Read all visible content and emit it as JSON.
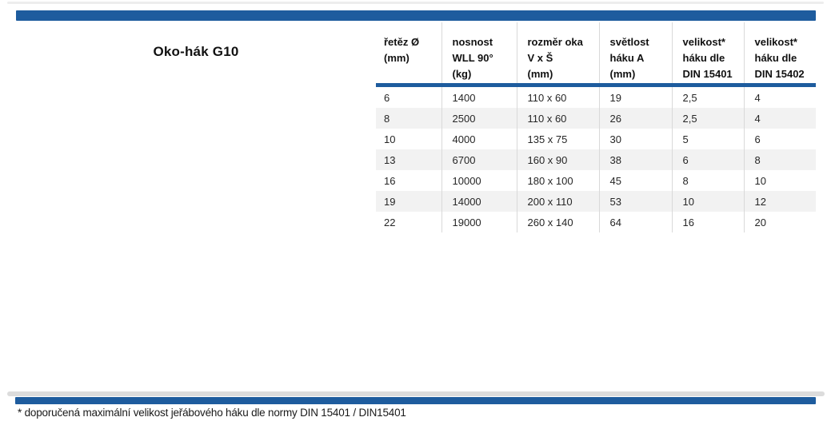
{
  "page": {
    "title": "Oko-hák G10",
    "footnote": "* doporučená maximální velikost jeřábového háku dle normy DIN 15401 / DIN15401"
  },
  "colors": {
    "accent_blue": "#1e5c9e",
    "row_alt": "#f2f2f2",
    "grid_line": "#d9d9d9"
  },
  "table": {
    "columns": [
      "řetěz Ø\n(mm)",
      "nosnost\nWLL 90°\n(kg)",
      "rozměr oka\nV x Š\n(mm)",
      "světlost\nháku A\n(mm)",
      "velikost*\nháku dle\nDIN 15401",
      "velikost*\nháku dle\nDIN 15402"
    ],
    "rows": [
      [
        "6",
        "1400",
        "110 x 60",
        "19",
        "2,5",
        "4"
      ],
      [
        "8",
        "2500",
        "110 x 60",
        "26",
        "2,5",
        "4"
      ],
      [
        "10",
        "4000",
        "135 x 75",
        "30",
        "5",
        "6"
      ],
      [
        "13",
        "6700",
        "160 x 90",
        "38",
        "6",
        "8"
      ],
      [
        "16",
        "10000",
        "180 x 100",
        "45",
        "8",
        "10"
      ],
      [
        "19",
        "14000",
        "200 x 110",
        "53",
        "10",
        "12"
      ],
      [
        "22",
        "19000",
        "260 x 140",
        "64",
        "16",
        "20"
      ]
    ]
  }
}
